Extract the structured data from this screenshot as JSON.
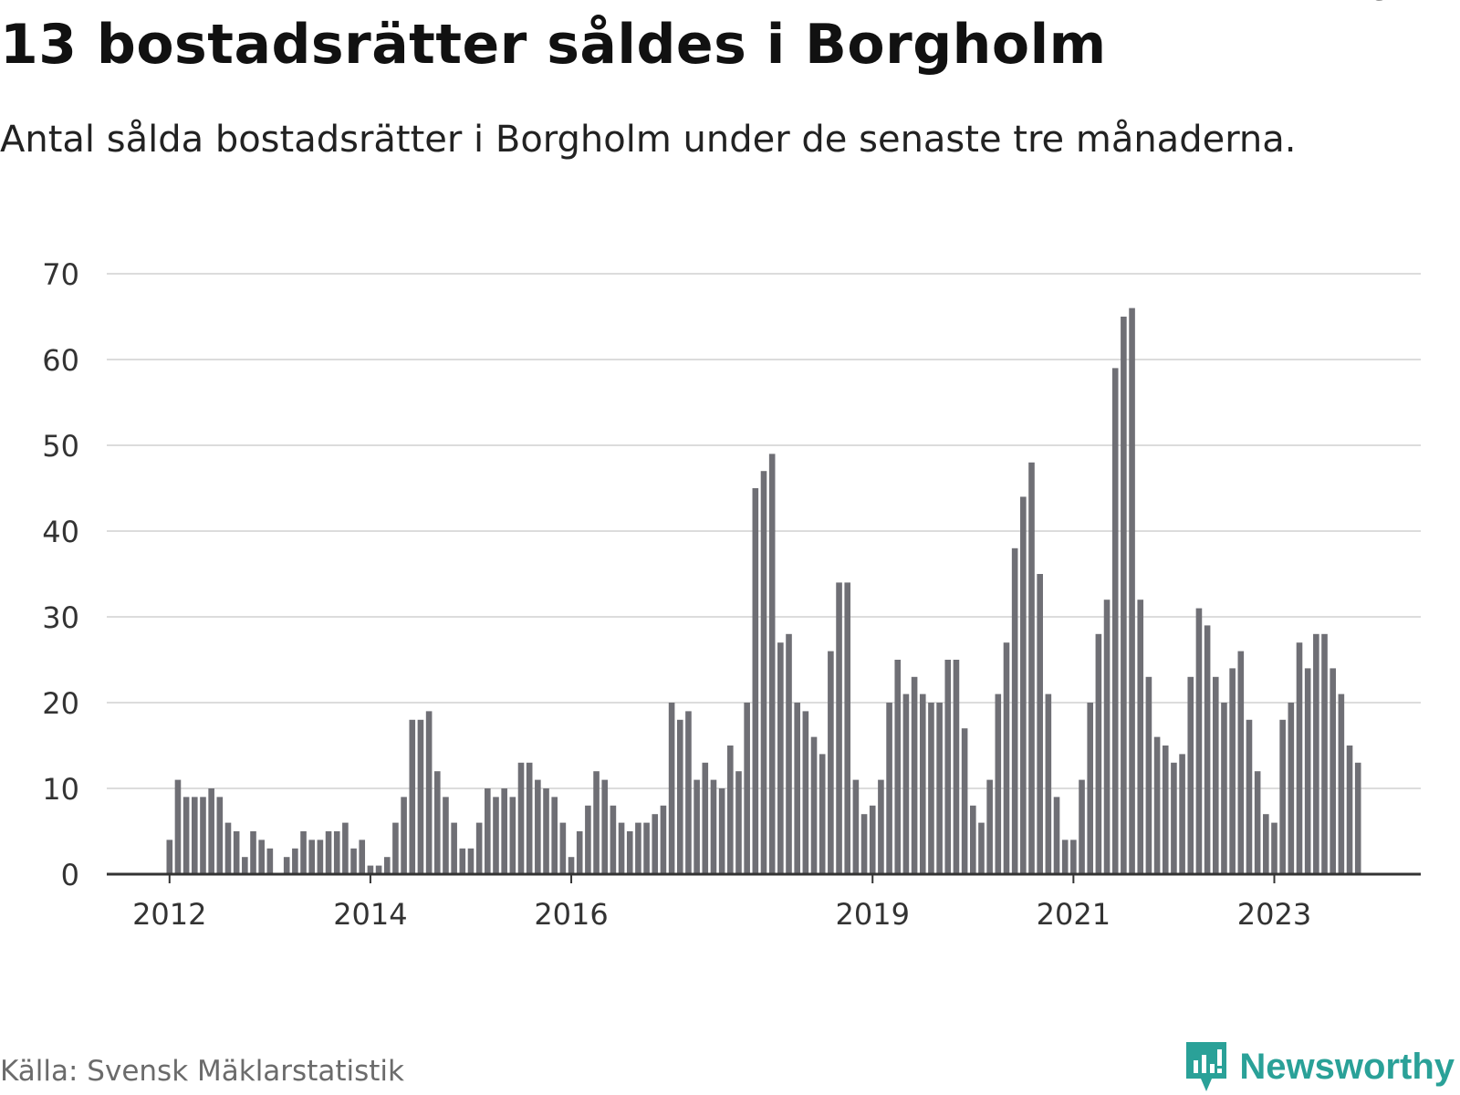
{
  "title": "13 bostadsrätter såldes i Borgholm",
  "subtitle": "Antal sålda bostadsrätter i Borgholm under de senaste tre månaderna.",
  "source": "Källa: Svensk Mäklarstatistik",
  "brand": {
    "name": "Newsworthy",
    "icon": "newsworthy-logo-icon",
    "color": "#2aa198"
  },
  "colors": {
    "bar": "#6f6f75",
    "highlight": "#12a396",
    "grid": "#dcdcdc",
    "axis": "#333333"
  },
  "chart_data": {
    "type": "bar",
    "title": "13 bostadsrätter såldes i Borgholm",
    "xlabel": "",
    "ylabel": "",
    "ylim": [
      0,
      70
    ],
    "yticks": [
      0,
      10,
      20,
      30,
      40,
      50,
      60,
      70
    ],
    "xticks": [
      {
        "label": "2012",
        "index": 0
      },
      {
        "label": "2014",
        "index": 24
      },
      {
        "label": "2016",
        "index": 48
      },
      {
        "label": "2019",
        "index": 84
      },
      {
        "label": "2021",
        "index": 108
      },
      {
        "label": "2023",
        "index": 132
      }
    ],
    "x_range": [
      -7.5,
      149.5
    ],
    "grid": true,
    "values": [
      4,
      11,
      9,
      9,
      9,
      10,
      9,
      6,
      5,
      2,
      5,
      4,
      3,
      0,
      2,
      3,
      5,
      4,
      4,
      5,
      5,
      6,
      3,
      4,
      1,
      1,
      2,
      6,
      9,
      18,
      18,
      19,
      12,
      9,
      6,
      3,
      3,
      6,
      10,
      9,
      10,
      9,
      13,
      13,
      11,
      10,
      9,
      6,
      2,
      5,
      8,
      12,
      11,
      8,
      6,
      5,
      6,
      6,
      7,
      8,
      20,
      18,
      19,
      11,
      13,
      11,
      10,
      15,
      12,
      20,
      45,
      47,
      49,
      27,
      28,
      20,
      19,
      16,
      14,
      26,
      34,
      34,
      11,
      7,
      8,
      11,
      20,
      25,
      21,
      23,
      21,
      20,
      20,
      25,
      25,
      17,
      8,
      6,
      11,
      21,
      27,
      38,
      44,
      48,
      35,
      21,
      9,
      4,
      4,
      11,
      20,
      28,
      32,
      59,
      65,
      66,
      32,
      23,
      16,
      15,
      13,
      14,
      23,
      31,
      29,
      23,
      20,
      24,
      26,
      18,
      12,
      7,
      6,
      18,
      20,
      27,
      24,
      28,
      28,
      24,
      21,
      15,
      13
    ],
    "highlight": {
      "index": 143,
      "label": "13"
    }
  }
}
